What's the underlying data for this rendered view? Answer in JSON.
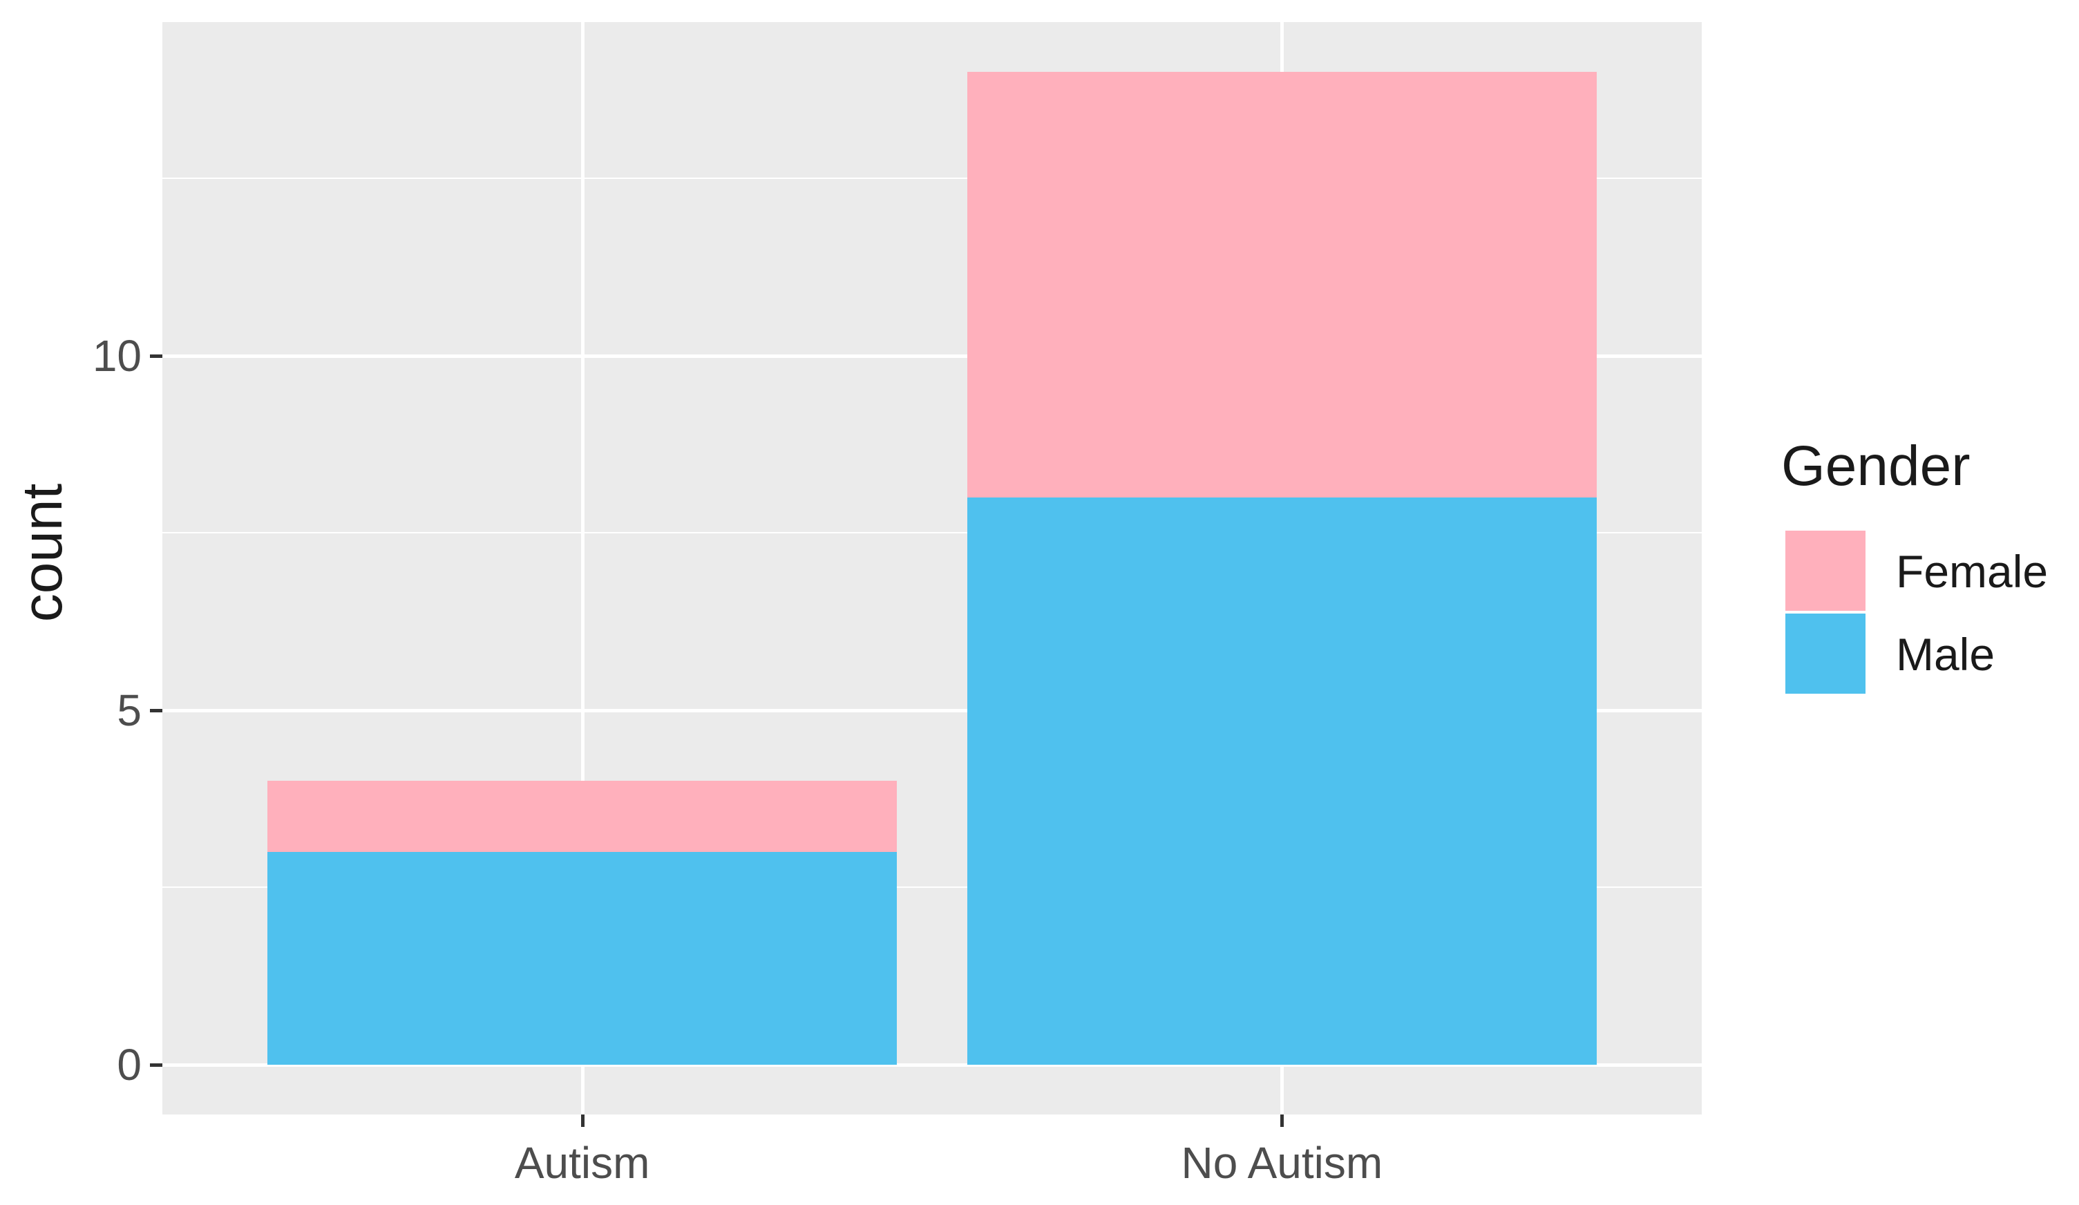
{
  "figure": {
    "background": "#FFFFFF",
    "panel_background": "#EBEBEB",
    "gridline_color": "#FFFFFF",
    "tick_mark_color": "#333333",
    "axis_text_color": "#4D4D4D",
    "title_text_color": "#1A1A1A"
  },
  "chart_data": {
    "type": "bar",
    "stacked": true,
    "title": "",
    "xlabel": "",
    "ylabel": "count",
    "categories": [
      "Autism",
      "No Autism"
    ],
    "series": [
      {
        "name": "Male",
        "color": "#4FC1EE",
        "values": [
          3,
          8
        ]
      },
      {
        "name": "Female",
        "color": "#FFB0BC",
        "values": [
          1,
          6
        ]
      }
    ],
    "totals": [
      4,
      14
    ],
    "y_ticks": [
      0,
      5,
      10
    ],
    "y_tick_labels": [
      "0",
      "5",
      "10"
    ],
    "y_minor_ticks": [
      2.5,
      7.5,
      12.5
    ],
    "y_range": [
      -0.7,
      14.7
    ],
    "x_range_units": [
      0.4,
      2.6
    ],
    "category_positions": [
      1,
      2
    ],
    "bar_width_units": 0.9,
    "grid": true,
    "legend_position": "right"
  },
  "x_axis": {
    "labels": [
      "Autism",
      "No Autism"
    ]
  },
  "y_axis": {
    "title": "count",
    "tick_labels": [
      "0",
      "5",
      "10"
    ]
  },
  "legend": {
    "title": "Gender",
    "items": [
      {
        "label": "Female",
        "color": "#FFB0BC"
      },
      {
        "label": "Male",
        "color": "#4FC1EE"
      }
    ]
  }
}
